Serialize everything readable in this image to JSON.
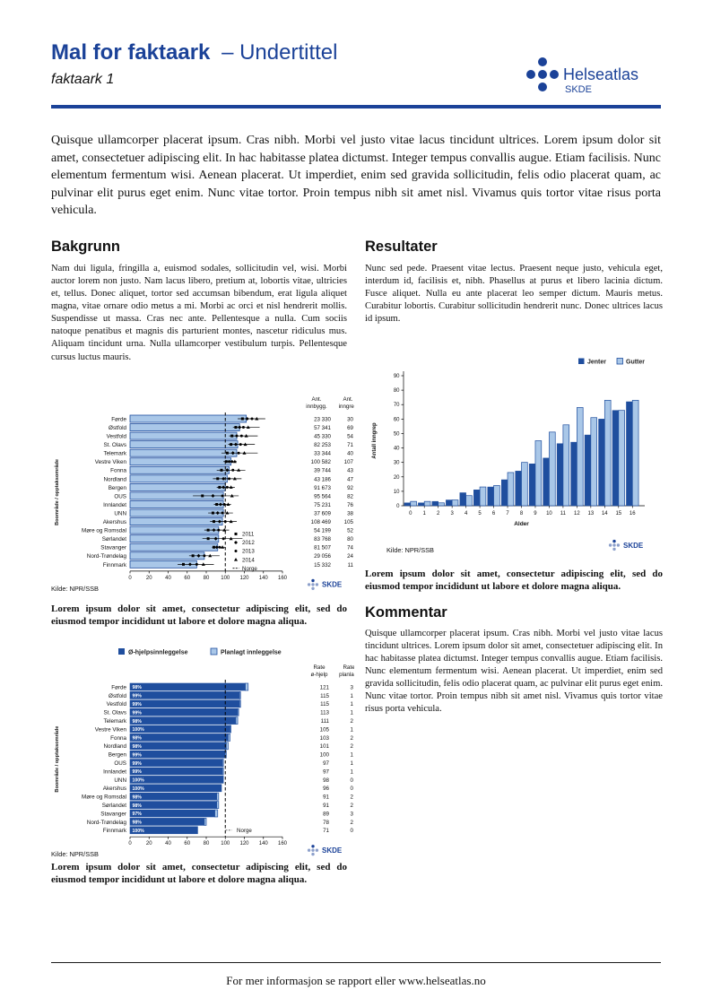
{
  "header": {
    "title_bold": "Mal for faktaark",
    "title_rest": "– Undertittel",
    "subtitle": "faktaark 1",
    "logo_text": "Helseatlas",
    "logo_sub": "SKDE"
  },
  "colors": {
    "brand_blue": "#1b4298",
    "bar_dark": "#1f4e9e",
    "bar_light": "#a9c7e8",
    "text": "#111111"
  },
  "intro": "Quisque ullamcorper placerat ipsum. Cras nibh. Morbi vel justo vitae lacus tincidunt ultrices. Lorem ipsum dolor sit amet, consectetuer adipiscing elit. In hac habitasse platea dictumst. Integer tempus convallis augue. Etiam facilisis. Nunc elementum fermentum wisi. Aenean placerat. Ut imperdiet, enim sed gravida sollicitudin, felis odio placerat quam, ac pulvinar elit purus eget enim. Nunc vitae tortor. Proin tempus nibh sit amet nisl. Vivamus quis tortor vitae risus porta vehicula.",
  "sections": {
    "bakgrunn": {
      "heading": "Bakgrunn",
      "body": "Nam dui ligula, fringilla a, euismod sodales, sollicitudin vel, wisi. Morbi auctor lorem non justo. Nam lacus libero, pretium at, lobortis vitae, ultricies et, tellus. Donec aliquet, tortor sed accumsan bibendum, erat ligula aliquet magna, vitae ornare odio metus a mi. Morbi ac orci et nisl hendrerit mollis. Suspendisse ut massa. Cras nec ante. Pellentesque a nulla. Cum sociis natoque penatibus et magnis dis parturient montes, nascetur ridiculus mus. Aliquam tincidunt urna. Nulla ullamcorper vestibulum turpis. Pellentesque cursus luctus mauris."
    },
    "resultater": {
      "heading": "Resultater",
      "body": "Nunc sed pede. Praesent vitae lectus. Praesent neque justo, vehicula eget, interdum id, facilisis et, nibh. Phasellus at purus et libero lacinia dictum. Fusce aliquet. Nulla eu ante placerat leo semper dictum. Mauris metus. Curabitur lobortis. Curabitur sollicitudin hendrerit nunc. Donec ultrices lacus id ipsum."
    },
    "kommentar": {
      "heading": "Kommentar",
      "body": "Quisque ullamcorper placerat ipsum. Cras nibh. Morbi vel justo vitae lacus tincidunt ultrices. Lorem ipsum dolor sit amet, consectetuer adipiscing elit. In hac habitasse platea dictumst. Integer tempus convallis augue. Etiam facilisis. Nunc elementum fermentum wisi. Aenean placerat. Ut imperdiet, enim sed gravida sollicitudin, felis odio placerat quam, ac pulvinar elit purus eget enim. Nunc vitae tortor. Proin tempus nibh sit amet nisl. Vivamus quis tortor vitae risus porta vehicula."
    }
  },
  "captions": {
    "chart1": "Lorem ipsum dolor sit amet, consectetur adipiscing elit, sed do eiusmod tempor incididunt ut labore et dolore magna aliqua.",
    "chart2": "Lorem ipsum dolor sit amet, consectetur adipiscing elit, sed do eiusmod tempor incididunt ut labore et dolore magna aliqua.",
    "chart3": "Lorem ipsum dolor sit amet, consectetur adipiscing elit, sed do eiusmod tempor incididunt ut labore et dolore magna aliqua."
  },
  "footer": {
    "text": "For mer informasjon se rapport eller www.helseatlas.no"
  },
  "chart_data": [
    {
      "id": "chart1",
      "type": "bar",
      "subtype": "horizontal-with-year-markers",
      "ylabel": "Boområde / opptaksområde",
      "xlim": [
        0,
        160
      ],
      "xticks": [
        0,
        20,
        40,
        60,
        80,
        100,
        120,
        140,
        160
      ],
      "reference_line": {
        "label": "Norge",
        "value": 100,
        "style": "dashed"
      },
      "source": "Kilde: NPR/SSB",
      "corner_logo": "SKDE",
      "column_headers": [
        [
          "Ant.",
          "innbygg."
        ],
        [
          "Ant.",
          "inngrep"
        ]
      ],
      "legend_years": [
        {
          "label": "2011",
          "marker": "square"
        },
        {
          "label": "2012",
          "marker": "diamond"
        },
        {
          "label": "2013",
          "marker": "circle"
        },
        {
          "label": "2014",
          "marker": "triangle"
        },
        {
          "label": "Norge",
          "marker": "dash"
        }
      ],
      "rows": [
        {
          "label": "Førde",
          "bar": 122,
          "range": [
            113,
            142
          ],
          "markers": [
            118,
            123,
            128,
            133
          ],
          "innbygg": "23 330",
          "inngrep": "30"
        },
        {
          "label": "Østfold",
          "bar": 115,
          "range": [
            108,
            136
          ],
          "markers": [
            111,
            115,
            119,
            124
          ],
          "innbygg": "57 341",
          "inngrep": "69"
        },
        {
          "label": "Vestfold",
          "bar": 112,
          "range": [
            104,
            134
          ],
          "markers": [
            107,
            112,
            117,
            122
          ],
          "innbygg": "45 330",
          "inngrep": "54"
        },
        {
          "label": "St. Olavs",
          "bar": 113,
          "range": [
            103,
            131
          ],
          "markers": [
            106,
            111,
            116,
            121
          ],
          "innbygg": "82 253",
          "inngrep": "71"
        },
        {
          "label": "Telemark",
          "bar": 112,
          "range": [
            96,
            134
          ],
          "markers": [
            102,
            108,
            114,
            120
          ],
          "innbygg": "33 344",
          "inngrep": "40"
        },
        {
          "label": "Vestre Viken",
          "bar": 106,
          "range": [
            98,
            112
          ],
          "markers": [
            101,
            104,
            107,
            110
          ],
          "innbygg": "100 582",
          "inngrep": "107"
        },
        {
          "label": "Fonna",
          "bar": 104,
          "range": [
            91,
            121
          ],
          "markers": [
            96,
            102,
            108,
            114
          ],
          "innbygg": "39 744",
          "inngrep": "43"
        },
        {
          "label": "Nordland",
          "bar": 102,
          "range": [
            87,
            117
          ],
          "markers": [
            92,
            98,
            104,
            110
          ],
          "innbygg": "43 186",
          "inngrep": "47"
        },
        {
          "label": "Bergen",
          "bar": 100,
          "range": [
            91,
            110
          ],
          "markers": [
            94,
            98,
            102,
            106
          ],
          "innbygg": "91 673",
          "inngrep": "92"
        },
        {
          "label": "OUS",
          "bar": 98,
          "range": [
            66,
            114
          ],
          "markers": [
            76,
            87,
            97,
            107
          ],
          "innbygg": "95 564",
          "inngrep": "82"
        },
        {
          "label": "Innlandet",
          "bar": 98,
          "range": [
            88,
            106
          ],
          "markers": [
            91,
            95,
            99,
            103
          ],
          "innbygg": "75 231",
          "inngrep": "76"
        },
        {
          "label": "UNN",
          "bar": 98,
          "range": [
            82,
            108
          ],
          "markers": [
            87,
            92,
            97,
            102
          ],
          "innbygg": "37 609",
          "inngrep": "38"
        },
        {
          "label": "Akershus",
          "bar": 97,
          "range": [
            84,
            112
          ],
          "markers": [
            88,
            94,
            100,
            106
          ],
          "innbygg": "108 469",
          "inngrep": "105"
        },
        {
          "label": "Møre og Romsdal",
          "bar": 93,
          "range": [
            78,
            104
          ],
          "markers": [
            82,
            88,
            93,
            99
          ],
          "innbygg": "54 199",
          "inngrep": "52"
        },
        {
          "label": "Sørlandet",
          "bar": 93,
          "range": [
            76,
            118
          ],
          "markers": [
            82,
            90,
            98,
            106
          ],
          "innbygg": "83 768",
          "inngrep": "80"
        },
        {
          "label": "Stavanger",
          "bar": 92,
          "range": [
            86,
            100
          ],
          "markers": [
            88,
            91,
            94,
            97
          ],
          "innbygg": "81 507",
          "inngrep": "74"
        },
        {
          "label": "Nord-Trøndelag",
          "bar": 78,
          "range": [
            62,
            94
          ],
          "markers": [
            66,
            72,
            78,
            84
          ],
          "innbygg": "29 056",
          "inngrep": "24"
        },
        {
          "label": "Finnmark",
          "bar": 70,
          "range": [
            50,
            88
          ],
          "markers": [
            56,
            63,
            70,
            77
          ],
          "innbygg": "15 332",
          "inngrep": "11"
        }
      ]
    },
    {
      "id": "chart2",
      "type": "bar",
      "subtype": "stacked-horizontal",
      "legend": [
        {
          "label": "Ø-hjelpsinnleggelse",
          "color": "dark"
        },
        {
          "label": "Planlagt innleggelse",
          "color": "light"
        }
      ],
      "ylabel": "Boområde / opptaksområde",
      "xlim": [
        0,
        160
      ],
      "xticks": [
        0,
        20,
        40,
        60,
        80,
        100,
        120,
        140,
        160
      ],
      "reference_line": {
        "label": "Norge",
        "value": 100,
        "style": "dashed"
      },
      "source": "Kilde: NPR/SSB",
      "corner_logo": "SKDE",
      "column_headers": [
        [
          "Rate",
          "ø-hjelp"
        ],
        [
          "Rate",
          "planlagt"
        ]
      ],
      "rows": [
        {
          "label": "Førde",
          "pct": "98%",
          "ohjelp": 121,
          "planlagt": 3
        },
        {
          "label": "Østfold",
          "pct": "99%",
          "ohjelp": 115,
          "planlagt": 1
        },
        {
          "label": "Vestfold",
          "pct": "99%",
          "ohjelp": 115,
          "planlagt": 1
        },
        {
          "label": "St. Olavs",
          "pct": "99%",
          "ohjelp": 113,
          "planlagt": 1
        },
        {
          "label": "Telemark",
          "pct": "98%",
          "ohjelp": 111,
          "planlagt": 2
        },
        {
          "label": "Vestre Viken",
          "pct": "100%",
          "ohjelp": 105,
          "planlagt": 1
        },
        {
          "label": "Fonna",
          "pct": "98%",
          "ohjelp": 103,
          "planlagt": 2
        },
        {
          "label": "Nordland",
          "pct": "98%",
          "ohjelp": 101,
          "planlagt": 2
        },
        {
          "label": "Bergen",
          "pct": "99%",
          "ohjelp": 100,
          "planlagt": 1
        },
        {
          "label": "OUS",
          "pct": "99%",
          "ohjelp": 97,
          "planlagt": 1
        },
        {
          "label": "Innlandet",
          "pct": "99%",
          "ohjelp": 97,
          "planlagt": 1
        },
        {
          "label": "UNN",
          "pct": "100%",
          "ohjelp": 98,
          "planlagt": 0
        },
        {
          "label": "Akershus",
          "pct": "100%",
          "ohjelp": 96,
          "planlagt": 0
        },
        {
          "label": "Møre og Romsdal",
          "pct": "98%",
          "ohjelp": 91,
          "planlagt": 2
        },
        {
          "label": "Sørlandet",
          "pct": "98%",
          "ohjelp": 91,
          "planlagt": 2
        },
        {
          "label": "Stavanger",
          "pct": "97%",
          "ohjelp": 89,
          "planlagt": 3
        },
        {
          "label": "Nord-Trøndelag",
          "pct": "98%",
          "ohjelp": 78,
          "planlagt": 2
        },
        {
          "label": "Finnmark",
          "pct": "100%",
          "ohjelp": 71,
          "planlagt": 0
        }
      ]
    },
    {
      "id": "chart3",
      "type": "bar",
      "subtype": "grouped-vertical",
      "categories": [
        0,
        1,
        2,
        3,
        4,
        5,
        6,
        7,
        8,
        9,
        10,
        11,
        12,
        13,
        14,
        15,
        16
      ],
      "series": [
        {
          "name": "Jenter",
          "color": "dark",
          "values": [
            2,
            2,
            3,
            4,
            9,
            11,
            13,
            18,
            24,
            29,
            33,
            43,
            44,
            49,
            60,
            66,
            72
          ]
        },
        {
          "name": "Gutter",
          "color": "light",
          "values": [
            3,
            3,
            2,
            4,
            7,
            13,
            14,
            23,
            30,
            45,
            51,
            56,
            68,
            61,
            73,
            66,
            73
          ]
        }
      ],
      "xlabel": "Alder",
      "ylabel": "Antall inngrep",
      "ylim": [
        0,
        90
      ],
      "yticks": [
        0,
        10,
        20,
        30,
        40,
        50,
        60,
        70,
        80,
        90
      ],
      "source": "Kilde: NPR/SSB",
      "corner_logo": "SKDE"
    }
  ]
}
